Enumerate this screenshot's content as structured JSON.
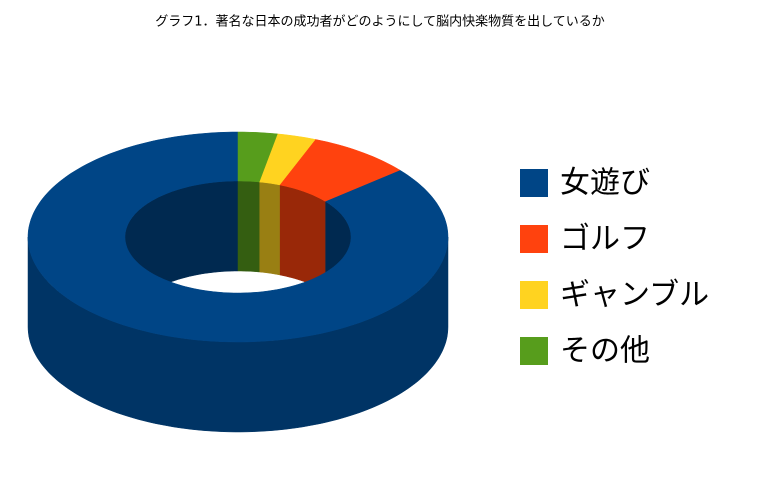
{
  "chart_data": {
    "type": "donut",
    "title": "グラフ1．著名な日本の成功者がどのようにして脳内快楽物質を出しているか",
    "categories": [
      "女遊び",
      "ゴルフ",
      "ギャンブル",
      "その他"
    ],
    "values": [
      86,
      8,
      3,
      3
    ],
    "colors": [
      "#004586",
      "#ff420e",
      "#ffd320",
      "#579d1c"
    ],
    "legend": "right"
  }
}
